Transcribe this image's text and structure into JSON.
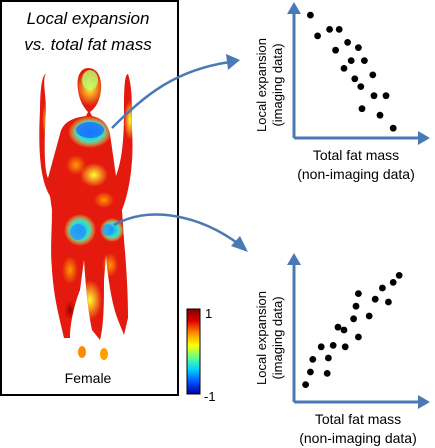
{
  "left_panel": {
    "title_line1": "Local expansion",
    "title_line2": "vs. total fat mass",
    "body_label": "Female",
    "colorbar": {
      "max_label": "1",
      "min_label": "-1",
      "stops": [
        "#0000a0",
        "#0050ff",
        "#00d0ff",
        "#60ff90",
        "#ffff00",
        "#ff9000",
        "#e00000",
        "#800000"
      ]
    }
  },
  "plots": [
    {
      "ylabel_line1": "Local expansion",
      "ylabel_line2": "(imaging data)",
      "xlabel_line1": "Total fat mass",
      "xlabel_line2": "(non-imaging data)",
      "trend": "negative",
      "points": [
        [
          0.12,
          0.93
        ],
        [
          0.28,
          0.82
        ],
        [
          0.36,
          0.82
        ],
        [
          0.18,
          0.77
        ],
        [
          0.43,
          0.72
        ],
        [
          0.52,
          0.68
        ],
        [
          0.33,
          0.66
        ],
        [
          0.46,
          0.58
        ],
        [
          0.57,
          0.58
        ],
        [
          0.4,
          0.52
        ],
        [
          0.49,
          0.44
        ],
        [
          0.64,
          0.47
        ],
        [
          0.54,
          0.38
        ],
        [
          0.65,
          0.31
        ],
        [
          0.75,
          0.31
        ],
        [
          0.55,
          0.21
        ],
        [
          0.7,
          0.16
        ],
        [
          0.81,
          0.06
        ]
      ]
    },
    {
      "ylabel_line1": "Local expansion",
      "ylabel_line2": "(imaging data)",
      "xlabel_line1": "Total fat mass",
      "xlabel_line2": "(non-imaging data)",
      "trend": "positive",
      "points": [
        [
          0.08,
          0.11
        ],
        [
          0.12,
          0.2
        ],
        [
          0.26,
          0.19
        ],
        [
          0.14,
          0.29
        ],
        [
          0.27,
          0.3
        ],
        [
          0.21,
          0.38
        ],
        [
          0.31,
          0.39
        ],
        [
          0.41,
          0.38
        ],
        [
          0.4,
          0.5
        ],
        [
          0.52,
          0.45
        ],
        [
          0.35,
          0.52
        ],
        [
          0.48,
          0.58
        ],
        [
          0.61,
          0.6
        ],
        [
          0.5,
          0.67
        ],
        [
          0.52,
          0.76
        ],
        [
          0.66,
          0.72
        ],
        [
          0.77,
          0.7
        ],
        [
          0.72,
          0.8
        ],
        [
          0.81,
          0.84
        ],
        [
          0.86,
          0.89
        ]
      ]
    }
  ],
  "colors": {
    "arrow": "#4a7ab5",
    "axis": "#4a7ab5",
    "point": "#000000"
  }
}
